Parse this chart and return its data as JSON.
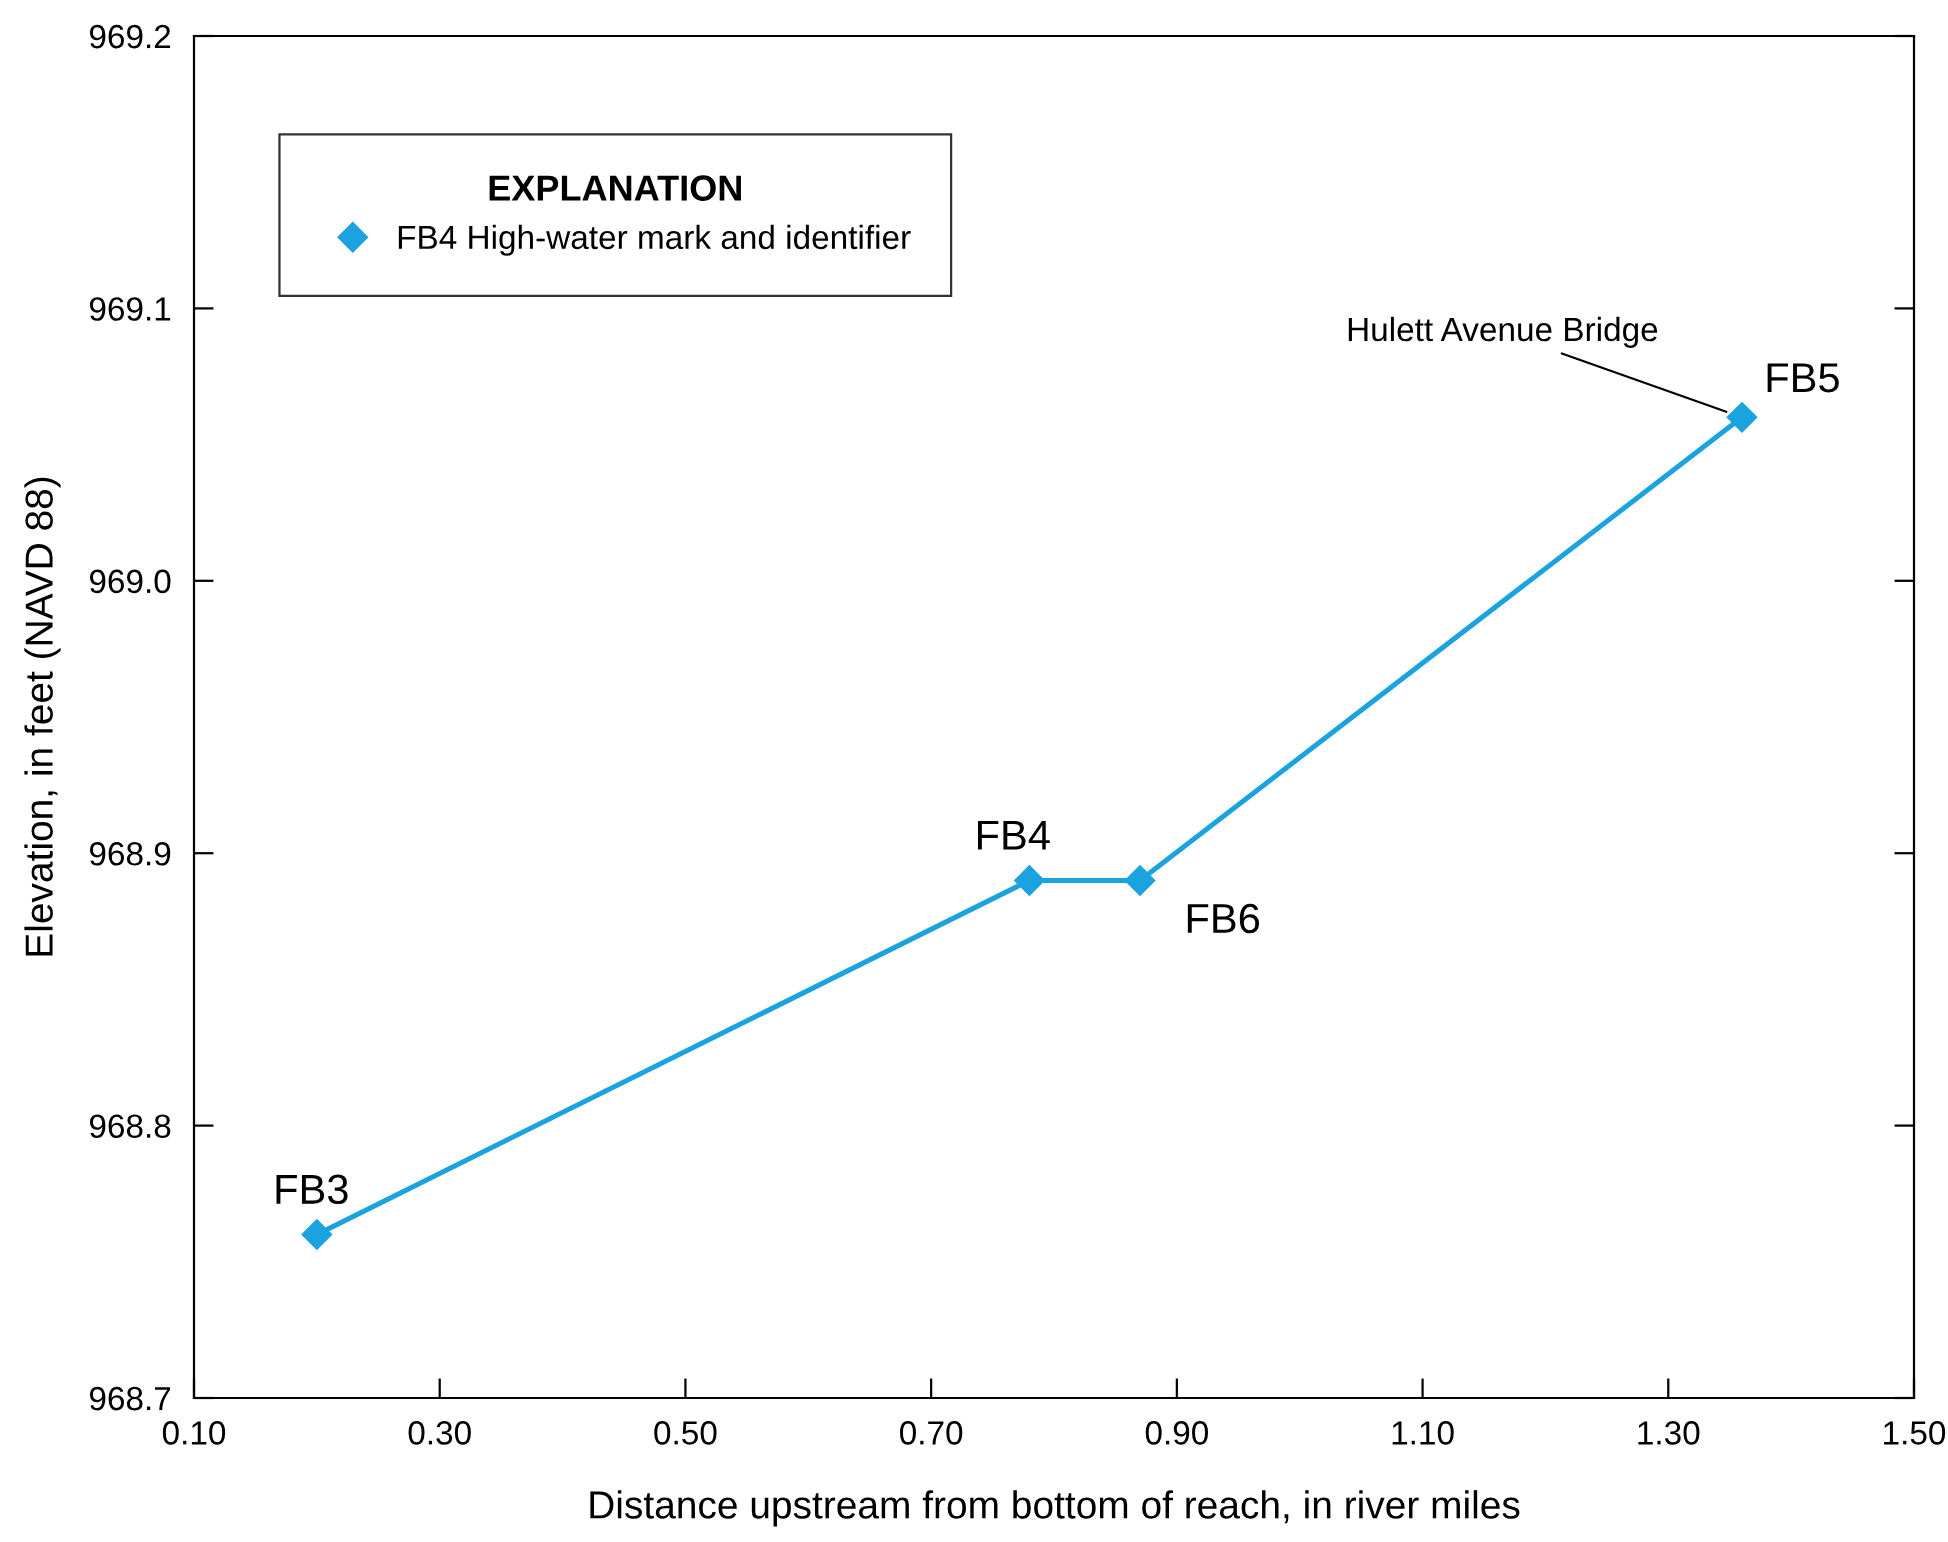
{
  "chart_data": {
    "type": "line",
    "xlabel": "Distance upstream from bottom of reach, in river miles",
    "ylabel": "Elevation, in feet (NAVD 88)",
    "x": [
      0.2,
      0.78,
      0.87,
      1.36
    ],
    "series": [
      {
        "name": "FB4 High-water mark and identifier",
        "color": "#1ba3e0",
        "values": [
          968.76,
          968.89,
          968.89,
          969.06
        ],
        "value_labels": [
          "FB3",
          "FB4",
          "FB6",
          "FB5"
        ]
      }
    ],
    "xlim": [
      0.1,
      1.5
    ],
    "xticks": [
      {
        "value": 0.1,
        "label": "0.10"
      },
      {
        "value": 0.3,
        "label": "0.30"
      },
      {
        "value": 0.5,
        "label": "0.50"
      },
      {
        "value": 0.7,
        "label": "0.70"
      },
      {
        "value": 0.9,
        "label": "0.90"
      },
      {
        "value": 1.1,
        "label": "1.10"
      },
      {
        "value": 1.3,
        "label": "1.30"
      },
      {
        "value": 1.5,
        "label": "1.50"
      }
    ],
    "ylim": [
      968.7,
      969.2
    ],
    "yticks": [
      968.7,
      968.8,
      968.9,
      {
        "value": 969.0,
        "label": "969.0"
      },
      969.1,
      969.2
    ],
    "marker": "diamond",
    "line_style": "solid",
    "grid": false,
    "legend": "top left",
    "legend_title": "EXPLANATION",
    "annotations": [
      {
        "text": "Hulett Avenue Bridge",
        "x": 1.36,
        "y": 969.06
      }
    ]
  }
}
